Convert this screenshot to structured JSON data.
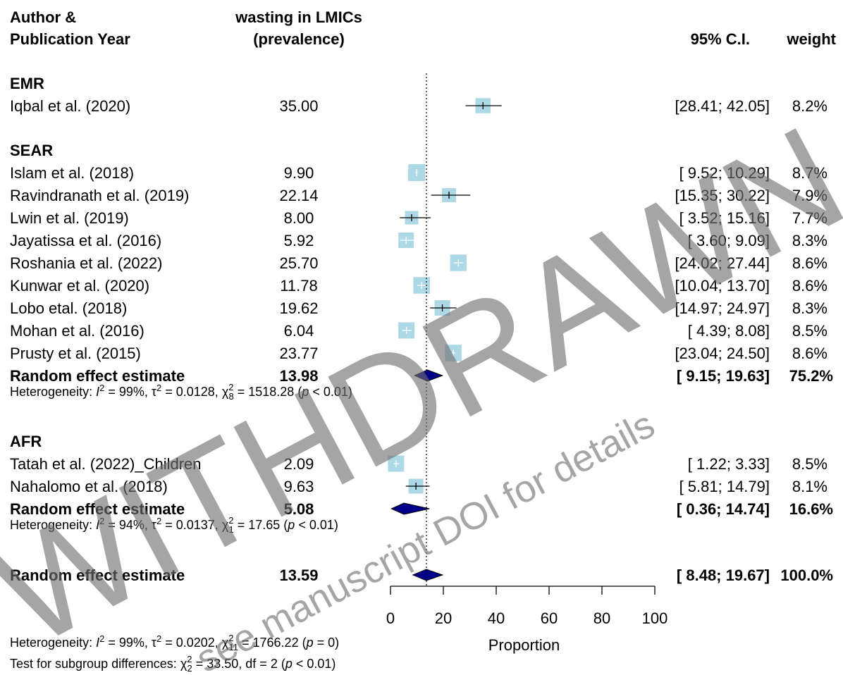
{
  "header": {
    "author_line1": "Author &",
    "author_line2": "Publication Year",
    "outcome_line1": "wasting in LMICs",
    "outcome_line2": "(prevalence)",
    "ci": "95% C.I.",
    "weight": "weight"
  },
  "chart_data": {
    "type": "forest",
    "xlabel": "Proportion",
    "xlim": [
      0,
      100
    ],
    "xticks": [
      "0",
      "20",
      "40",
      "60",
      "80",
      "100"
    ],
    "reference_line": 13.59,
    "groups": [
      {
        "label": "EMR",
        "studies": [
          {
            "name": "Iqbal et al. (2020)",
            "est_text": "35.00",
            "est": 35.0,
            "lo": 28.41,
            "hi": 42.05,
            "ci_text": "[28.41; 42.05]",
            "weight_text": "8.2%",
            "weight": 8.2
          }
        ]
      },
      {
        "label": "SEAR",
        "studies": [
          {
            "name": "Islam et al. (2018)",
            "est_text": "9.90",
            "est": 9.9,
            "lo": 9.52,
            "hi": 10.29,
            "ci_text": "[ 9.52; 10.29]",
            "weight_text": "8.7%",
            "weight": 8.7
          },
          {
            "name": "Ravindranath et al. (2019)",
            "est_text": "22.14",
            "est": 22.14,
            "lo": 15.35,
            "hi": 30.22,
            "ci_text": "[15.35; 30.22]",
            "weight_text": "7.9%",
            "weight": 7.9
          },
          {
            "name": "Lwin et al. (2019)",
            "est_text": "8.00",
            "est": 8.0,
            "lo": 3.52,
            "hi": 15.16,
            "ci_text": "[ 3.52; 15.16]",
            "weight_text": "7.7%",
            "weight": 7.7
          },
          {
            "name": "Jayatissa et al. (2016)",
            "est_text": "5.92",
            "est": 5.92,
            "lo": 3.6,
            "hi": 9.09,
            "ci_text": "[ 3.60;  9.09]",
            "weight_text": "8.3%",
            "weight": 8.3
          },
          {
            "name": "Roshania et al. (2022)",
            "est_text": "25.70",
            "est": 25.7,
            "lo": 24.02,
            "hi": 27.44,
            "ci_text": "[24.02; 27.44]",
            "weight_text": "8.6%",
            "weight": 8.6
          },
          {
            "name": "Kunwar et al. (2020)",
            "est_text": "11.78",
            "est": 11.78,
            "lo": 10.04,
            "hi": 13.7,
            "ci_text": "[10.04; 13.70]",
            "weight_text": "8.6%",
            "weight": 8.6
          },
          {
            "name": "Lobo etal. (2018)",
            "est_text": "19.62",
            "est": 19.62,
            "lo": 14.97,
            "hi": 24.97,
            "ci_text": "[14.97; 24.97]",
            "weight_text": "8.3%",
            "weight": 8.3
          },
          {
            "name": "Mohan et al. (2016)",
            "est_text": "6.04",
            "est": 6.04,
            "lo": 4.39,
            "hi": 8.08,
            "ci_text": "[ 4.39;  8.08]",
            "weight_text": "8.5%",
            "weight": 8.5
          },
          {
            "name": "Prusty et al. (2015)",
            "est_text": "23.77",
            "est": 23.77,
            "lo": 23.04,
            "hi": 24.5,
            "ci_text": "[23.04; 24.50]",
            "weight_text": "8.6%",
            "weight": 8.6
          }
        ],
        "pooled": {
          "name": "Random effect estimate",
          "est_text": "13.98",
          "est": 13.98,
          "lo": 9.15,
          "hi": 19.63,
          "ci_text": "[ 9.15; 19.63]",
          "weight_text": "75.2%"
        },
        "heterogeneity": {
          "prefix": "Heterogeneity: ",
          "i2_sym": "I",
          "i2_val": " = 99%, ",
          "tau_sym": "τ",
          "tau_val": " = 0.0128, ",
          "chi_sym": "χ",
          "chi_df": "8",
          "chi_val": " = 1518.28 (",
          "p_sym": "p",
          "p_val": " < 0.01)"
        }
      },
      {
        "label": "AFR",
        "studies": [
          {
            "name": "Tatah et al. (2022)_Children",
            "est_text": "2.09",
            "est": 2.09,
            "lo": 1.22,
            "hi": 3.33,
            "ci_text": "[ 1.22;  3.33]",
            "weight_text": "8.5%",
            "weight": 8.5
          },
          {
            "name": "Nahalomo et al. (2018)",
            "est_text": "9.63",
            "est": 9.63,
            "lo": 5.81,
            "hi": 14.79,
            "ci_text": "[ 5.81; 14.79]",
            "weight_text": "8.1%",
            "weight": 8.1
          }
        ],
        "pooled": {
          "name": "Random effect estimate",
          "est_text": "5.08",
          "est": 5.08,
          "lo": 0.36,
          "hi": 14.74,
          "ci_text": "[ 0.36; 14.74]",
          "weight_text": "16.6%"
        },
        "heterogeneity": {
          "prefix": "Heterogeneity: ",
          "i2_sym": "I",
          "i2_val": " = 94%, ",
          "tau_sym": "τ",
          "tau_val": " = 0.0137, ",
          "chi_sym": "χ",
          "chi_df": "1",
          "chi_val": " = 17.65 (",
          "p_sym": "p",
          "p_val": " < 0.01)"
        }
      }
    ],
    "overall": {
      "name": "Random effect estimate",
      "est_text": "13.59",
      "est": 13.59,
      "lo": 8.48,
      "hi": 19.67,
      "ci_text": "[ 8.48; 19.67]",
      "weight_text": "100.0%"
    },
    "overall_heterogeneity": {
      "prefix": "Heterogeneity: ",
      "i2_sym": "I",
      "i2_val": " = 99%, ",
      "tau_sym": "τ",
      "tau_val": " = 0.0202, ",
      "chi_sym": "χ",
      "chi_df": "11",
      "chi_val": " = 1766.22 (",
      "p_sym": "p",
      "p_val": " = 0)"
    },
    "subgroup_test": {
      "prefix": "Test for subgroup differences: ",
      "chi_sym": "χ",
      "chi_df": "2",
      "chi_val": " = 33.50, df = 2 (",
      "p_sym": "p",
      "p_val": " < 0.01)"
    },
    "colors": {
      "box": "#add8e6",
      "diamond": "#00008b",
      "ci_line": "#000000",
      "watermark": "#6e6e6e"
    }
  },
  "watermark": {
    "main": "WITHDRAWN",
    "sub": "see manuscript DOI for details"
  }
}
